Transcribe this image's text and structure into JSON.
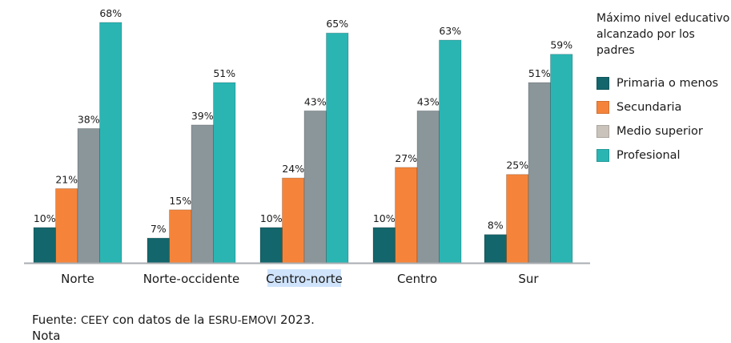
{
  "chart_data": {
    "type": "bar",
    "title": "",
    "xlabel": "",
    "ylabel": "",
    "ylim": [
      0,
      70
    ],
    "grid": false,
    "legend_position": "right",
    "legend_title": "Máximo nivel educativo alcanzado por los padres",
    "value_suffix": "%",
    "categories": [
      "Norte",
      "Norte-occidente",
      "Centro-norte",
      "Centro",
      "Sur"
    ],
    "highlighted_category": "Centro-norte",
    "series": [
      {
        "name": "Primaria o menos",
        "color": "#13666b",
        "legend_color": "#13666b",
        "values": [
          10,
          7,
          10,
          10,
          8
        ]
      },
      {
        "name": "Secundaria",
        "color": "#f5843a",
        "legend_color": "#f5843a",
        "values": [
          21,
          15,
          24,
          27,
          25
        ]
      },
      {
        "name": "Medio superior",
        "color": "#8b969b",
        "legend_color": "#c9c3bb",
        "values": [
          38,
          39,
          43,
          43,
          51
        ]
      },
      {
        "name": "Profesional",
        "color": "#2ab5b3",
        "legend_color": "#2ab5b3",
        "values": [
          68,
          51,
          65,
          63,
          59
        ]
      }
    ]
  },
  "footer": {
    "source_label": "Fuente:",
    "source_org": "CEEY",
    "source_mid": " con datos de la ",
    "source_survey": "ESRU-EMOVI",
    "source_year": " 2023.",
    "next_line": "Nota"
  }
}
